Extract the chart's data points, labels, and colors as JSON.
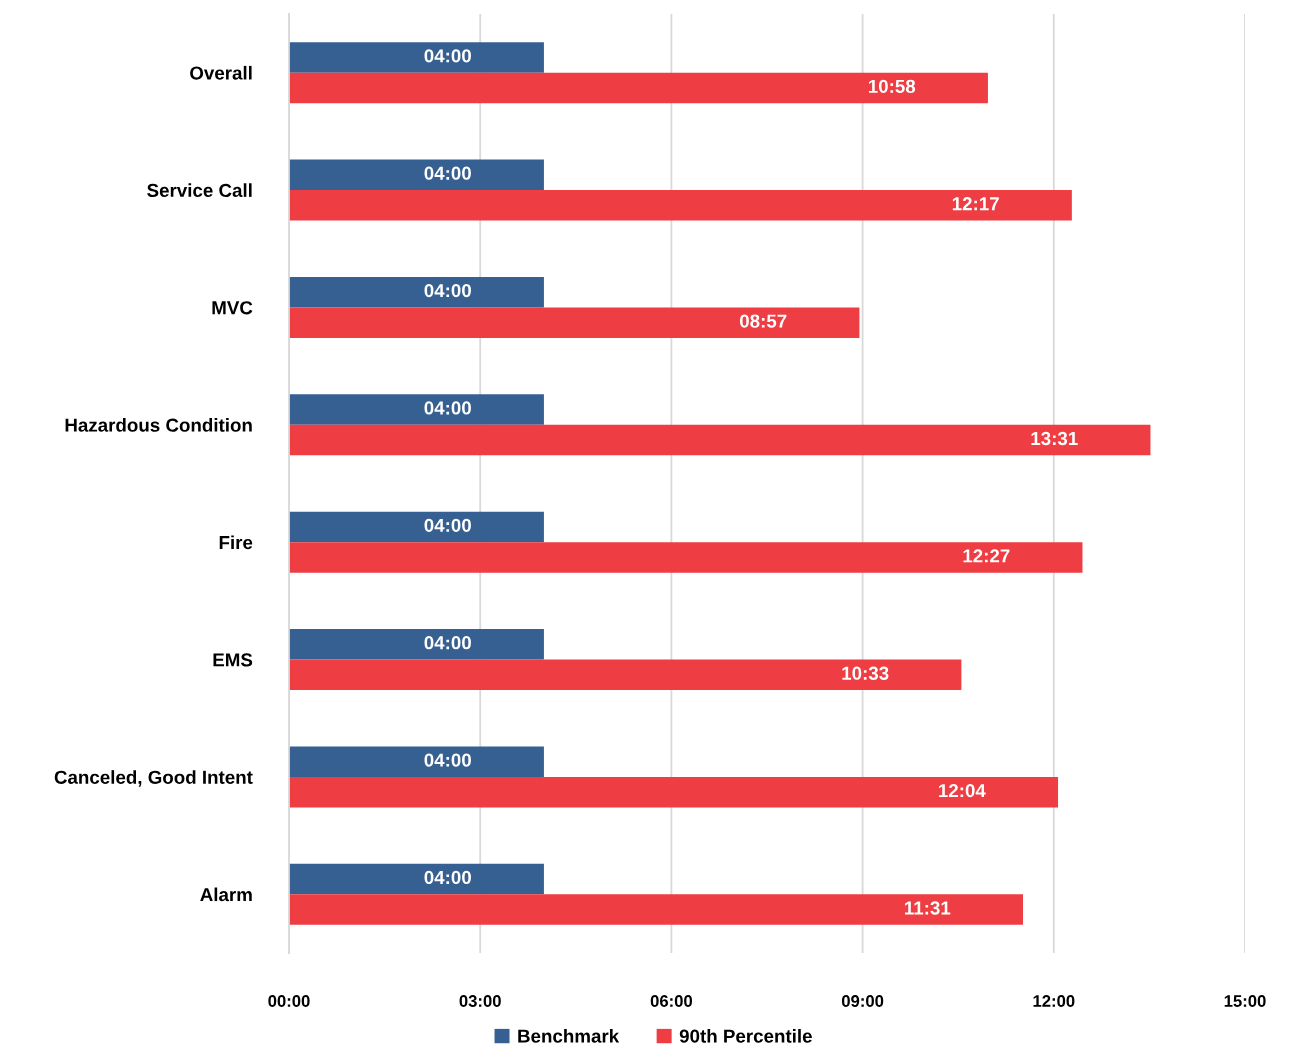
{
  "chart_data": {
    "type": "bar",
    "orientation": "horizontal",
    "categories": [
      "Overall",
      "Service Call",
      "MVC",
      "Hazardous Condition",
      "Fire",
      "EMS",
      "Canceled, Good Intent",
      "Alarm"
    ],
    "series": [
      {
        "name": "Benchmark",
        "color": "#376092",
        "values": [
          4,
          4,
          4,
          4,
          4,
          4,
          4,
          4
        ],
        "value_labels": [
          "04:00",
          "04:00",
          "04:00",
          "04:00",
          "04:00",
          "04:00",
          "04:00",
          "04:00"
        ]
      },
      {
        "name": "90th Percentile",
        "color": "#EE3D43",
        "values": [
          10.9667,
          12.2833,
          8.95,
          13.5167,
          12.45,
          10.55,
          12.0667,
          11.5167
        ],
        "value_labels": [
          "10:58",
          "12:17",
          "08:57",
          "13:31",
          "12:27",
          "10:33",
          "12:04",
          "11:31"
        ]
      }
    ],
    "xlim": [
      0,
      15
    ],
    "xticks": [
      {
        "value": 0,
        "label": "00:00"
      },
      {
        "value": 3,
        "label": "03:00"
      },
      {
        "value": 6,
        "label": "06:00"
      },
      {
        "value": 9,
        "label": "09:00"
      },
      {
        "value": 12,
        "label": "12:00"
      },
      {
        "value": 15,
        "label": "15:00"
      }
    ],
    "grid": "x",
    "legend": "bottom"
  }
}
